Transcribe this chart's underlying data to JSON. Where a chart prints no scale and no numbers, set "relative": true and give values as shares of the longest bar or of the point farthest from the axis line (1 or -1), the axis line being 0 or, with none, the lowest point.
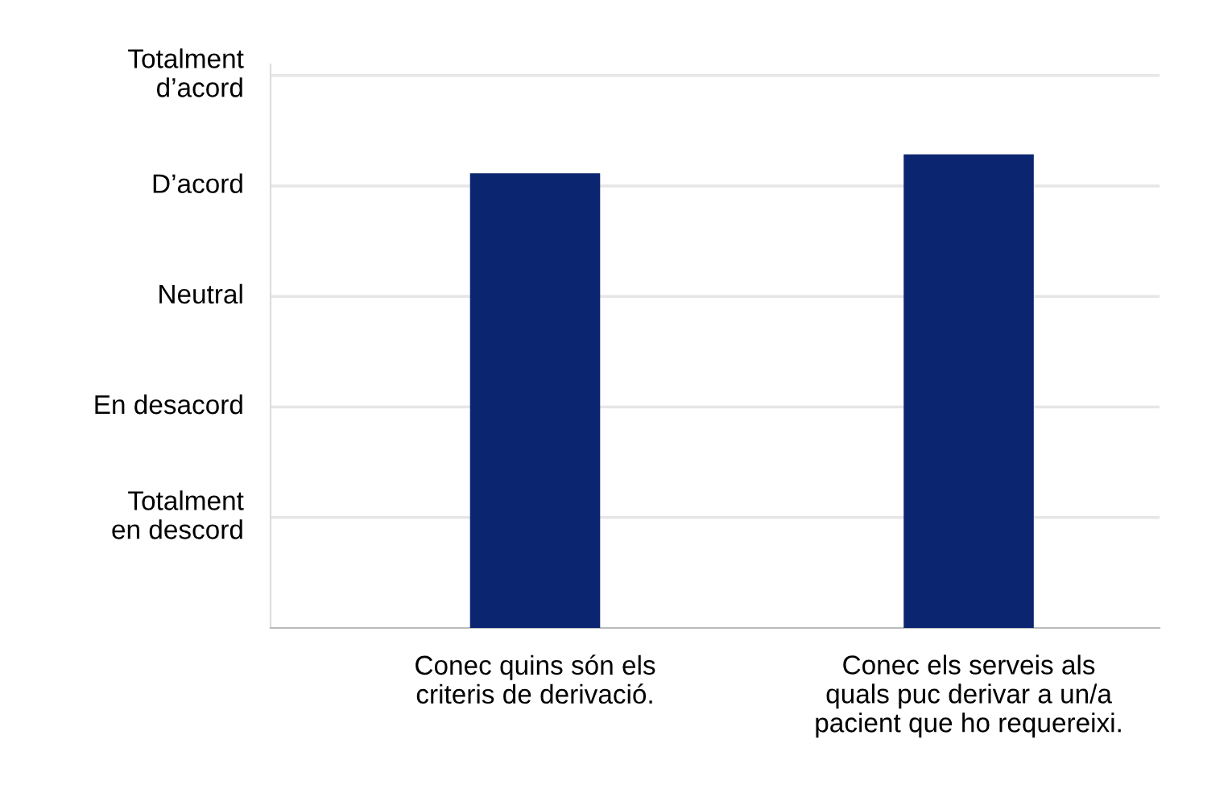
{
  "chart_data": {
    "type": "bar",
    "relative": true,
    "categories": [
      "Conec quins són els\ncriteris de derivació.",
      "Conec els serveis als\nquals puc derivar a un/a\npacient que ho requereixi."
    ],
    "values": [
      0.96,
      1
    ],
    "color": "#0b2570",
    "annotations": [
      "Totalment\nen descord",
      "En desacord",
      "Neutral",
      "D’acord",
      "Totalment\nd’acord"
    ],
    "grid": "y"
  }
}
